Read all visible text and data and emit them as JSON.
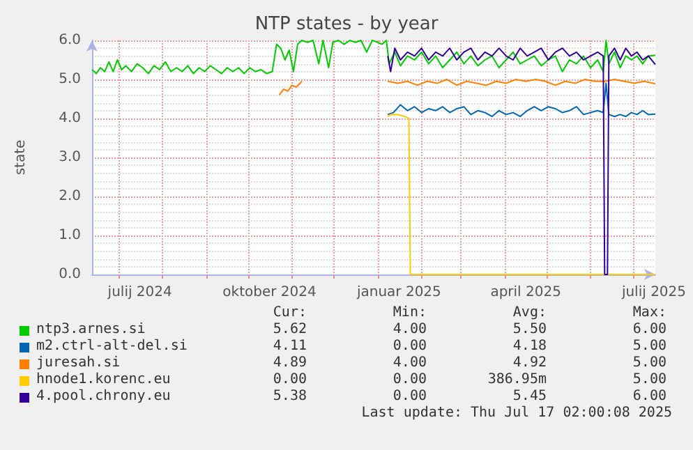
{
  "chart_data": {
    "type": "line",
    "title": "NTP states - by year",
    "ylabel": "state",
    "xlim": [
      "2024-06-12",
      "2025-07-17"
    ],
    "ylim": [
      0,
      6
    ],
    "yticks": [
      {
        "value": 0,
        "label": "0.0"
      },
      {
        "value": 1,
        "label": "1.0"
      },
      {
        "value": 2,
        "label": "2.0"
      },
      {
        "value": 3,
        "label": "3.0"
      },
      {
        "value": 4,
        "label": "4.0"
      },
      {
        "value": 5,
        "label": "5.0"
      },
      {
        "value": 6,
        "label": "6.0"
      }
    ],
    "xticks": [
      {
        "value": "2024-07-01",
        "label": null
      },
      {
        "value": "2024-07-16",
        "label": "julij 2024"
      },
      {
        "value": "2024-08-01",
        "label": null
      },
      {
        "value": "2024-09-01",
        "label": null
      },
      {
        "value": "2024-10-01",
        "label": null
      },
      {
        "value": "2024-10-16",
        "label": "oktober 2024"
      },
      {
        "value": "2024-11-01",
        "label": null
      },
      {
        "value": "2024-12-01",
        "label": null
      },
      {
        "value": "2025-01-01",
        "label": null
      },
      {
        "value": "2025-01-16",
        "label": "januar 2025"
      },
      {
        "value": "2025-02-01",
        "label": null
      },
      {
        "value": "2025-03-01",
        "label": null
      },
      {
        "value": "2025-04-01",
        "label": null
      },
      {
        "value": "2025-04-16",
        "label": "april 2025"
      },
      {
        "value": "2025-05-01",
        "label": null
      },
      {
        "value": "2025-06-01",
        "label": null
      },
      {
        "value": "2025-07-01",
        "label": null
      },
      {
        "value": "2025-07-16",
        "label": "julij 2025"
      }
    ],
    "grid": true,
    "legend": "bottom",
    "marker": "none",
    "series": [
      {
        "name": "ntp3.arnes.si",
        "color": "#00cc00",
        "x": [
          "2024-06-12",
          "2024-06-15",
          "2024-06-18",
          "2024-06-21",
          "2024-06-24",
          "2024-06-27",
          "2024-06-30",
          "2024-07-03",
          "2024-07-06",
          "2024-07-10",
          "2024-07-14",
          "2024-07-18",
          "2024-07-22",
          "2024-07-26",
          "2024-07-30",
          "2024-08-03",
          "2024-08-07",
          "2024-08-11",
          "2024-08-15",
          "2024-08-19",
          "2024-08-23",
          "2024-08-27",
          "2024-08-31",
          "2024-09-04",
          "2024-09-08",
          "2024-09-12",
          "2024-09-16",
          "2024-09-20",
          "2024-09-24",
          "2024-09-28",
          "2024-10-02",
          "2024-10-06",
          "2024-10-10",
          "2024-10-14",
          "2024-10-18",
          "2024-10-21",
          "2024-10-24",
          "2024-10-27",
          "2024-10-30",
          "2024-11-02",
          "2024-11-05",
          "2024-11-08",
          "2024-11-12",
          "2024-11-16",
          "2024-11-20",
          "2024-11-23",
          "2024-11-27",
          "2024-11-30",
          "2024-12-04",
          "2024-12-08",
          "2024-12-12",
          "2024-12-16",
          "2024-12-20",
          "2024-12-24",
          "2024-12-28",
          "2025-01-01",
          "2025-01-04",
          "2025-01-07",
          "2025-01-09",
          "2025-01-13",
          "2025-01-17",
          "2025-01-22",
          "2025-01-27",
          "2025-02-01",
          "2025-02-06",
          "2025-02-11",
          "2025-02-16",
          "2025-02-21",
          "2025-02-26",
          "2025-03-03",
          "2025-03-08",
          "2025-03-13",
          "2025-03-18",
          "2025-03-23",
          "2025-03-28",
          "2025-04-02",
          "2025-04-07",
          "2025-04-12",
          "2025-04-17",
          "2025-04-22",
          "2025-04-27",
          "2025-05-02",
          "2025-05-07",
          "2025-05-12",
          "2025-05-17",
          "2025-05-22",
          "2025-05-27",
          "2025-06-01",
          "2025-06-06",
          "2025-06-10",
          "2025-06-12",
          "2025-06-14",
          "2025-06-18",
          "2025-06-22",
          "2025-06-26",
          "2025-06-30",
          "2025-07-04",
          "2025-07-08",
          "2025-07-12",
          "2025-07-17"
        ],
        "values": [
          5.25,
          5.15,
          5.3,
          5.2,
          5.45,
          5.2,
          5.5,
          5.25,
          5.35,
          5.2,
          5.4,
          5.3,
          5.15,
          5.35,
          5.25,
          5.45,
          5.2,
          5.3,
          5.2,
          5.35,
          5.15,
          5.3,
          5.2,
          5.35,
          5.25,
          5.15,
          5.3,
          5.2,
          5.3,
          5.15,
          5.3,
          5.2,
          5.25,
          5.15,
          5.2,
          5.9,
          5.8,
          5.5,
          5.75,
          5.2,
          5.9,
          6.0,
          5.95,
          6.0,
          5.4,
          6.0,
          5.3,
          5.95,
          6.0,
          5.9,
          6.0,
          5.95,
          6.0,
          5.7,
          6.0,
          5.95,
          5.9,
          6.0,
          5.4,
          5.7,
          5.35,
          5.6,
          5.5,
          5.7,
          5.4,
          5.6,
          5.3,
          5.5,
          5.7,
          5.4,
          5.6,
          5.35,
          5.5,
          5.6,
          5.3,
          5.5,
          5.7,
          5.4,
          5.5,
          5.6,
          5.35,
          5.5,
          5.6,
          5.2,
          5.5,
          5.4,
          5.6,
          5.3,
          5.5,
          5.2,
          6.0,
          5.4,
          5.7,
          5.3,
          5.6,
          5.5,
          5.6,
          5.4,
          5.6,
          5.62
        ]
      },
      {
        "name": "m2.ctrl-alt-del.si",
        "color": "#0066b3",
        "x": [
          "2025-01-08",
          "2025-01-12",
          "2025-01-17",
          "2025-01-22",
          "2025-01-27",
          "2025-02-01",
          "2025-02-06",
          "2025-02-11",
          "2025-02-16",
          "2025-02-21",
          "2025-02-26",
          "2025-03-03",
          "2025-03-08",
          "2025-03-13",
          "2025-03-18",
          "2025-03-23",
          "2025-03-28",
          "2025-04-02",
          "2025-04-07",
          "2025-04-12",
          "2025-04-17",
          "2025-04-22",
          "2025-04-27",
          "2025-05-02",
          "2025-05-07",
          "2025-05-12",
          "2025-05-17",
          "2025-05-22",
          "2025-05-27",
          "2025-06-01",
          "2025-06-06",
          "2025-06-10",
          "2025-06-12",
          "2025-06-14",
          "2025-06-18",
          "2025-06-22",
          "2025-06-26",
          "2025-06-30",
          "2025-07-04",
          "2025-07-08",
          "2025-07-12",
          "2025-07-17"
        ],
        "values": [
          4.1,
          4.15,
          4.35,
          4.2,
          4.3,
          4.15,
          4.25,
          4.2,
          4.3,
          4.15,
          4.25,
          4.3,
          4.1,
          4.2,
          4.15,
          4.05,
          4.2,
          4.1,
          4.15,
          4.05,
          4.2,
          4.3,
          4.2,
          4.3,
          4.25,
          4.15,
          4.2,
          4.3,
          4.1,
          4.15,
          4.2,
          4.15,
          4.9,
          4.1,
          4.05,
          4.1,
          4.05,
          4.15,
          4.1,
          4.2,
          4.1,
          4.11
        ]
      },
      {
        "name": "juresah.si",
        "color": "#ff8000",
        "x": [
          "2025-01-08",
          "2025-01-15",
          "2025-01-22",
          "2025-01-29",
          "2025-02-05",
          "2025-02-12",
          "2025-02-19",
          "2025-02-26",
          "2025-03-05",
          "2025-03-12",
          "2025-03-19",
          "2025-03-26",
          "2025-04-02",
          "2025-04-09",
          "2025-04-16",
          "2025-04-23",
          "2025-04-30",
          "2025-05-07",
          "2025-05-14",
          "2025-05-21",
          "2025-05-28",
          "2025-06-04",
          "2025-06-11",
          "2025-06-18",
          "2025-06-25",
          "2025-07-02",
          "2025-07-09",
          "2025-07-17"
        ],
        "values": [
          4.95,
          4.9,
          4.95,
          4.85,
          4.95,
          4.9,
          5.0,
          4.85,
          4.95,
          4.9,
          4.85,
          4.95,
          4.9,
          5.0,
          4.95,
          5.0,
          4.95,
          4.85,
          4.95,
          4.9,
          5.0,
          4.95,
          4.95,
          5.0,
          4.95,
          4.9,
          4.95,
          4.89
        ]
      },
      {
        "name": "hnode1.korenc.eu",
        "color": "#ffcc00",
        "x": [
          "2025-01-08",
          "2025-01-10",
          "2025-01-15",
          "2025-01-20",
          "2025-01-23",
          "2025-01-24",
          "2025-07-17"
        ],
        "values": [
          4.05,
          4.1,
          4.1,
          4.05,
          4.0,
          0,
          0
        ]
      },
      {
        "name": "4.pool.chrony.eu",
        "color": "#330099",
        "x": [
          "2025-01-08",
          "2025-01-10",
          "2025-01-13",
          "2025-01-17",
          "2025-01-22",
          "2025-01-27",
          "2025-02-01",
          "2025-02-06",
          "2025-02-11",
          "2025-02-16",
          "2025-02-21",
          "2025-02-26",
          "2025-03-03",
          "2025-03-08",
          "2025-03-13",
          "2025-03-18",
          "2025-03-23",
          "2025-03-28",
          "2025-04-02",
          "2025-04-07",
          "2025-04-12",
          "2025-04-17",
          "2025-04-22",
          "2025-04-27",
          "2025-05-02",
          "2025-05-07",
          "2025-05-12",
          "2025-05-17",
          "2025-05-22",
          "2025-05-27",
          "2025-06-01",
          "2025-06-06",
          "2025-06-10",
          "2025-06-11",
          "2025-06-13",
          "2025-06-14",
          "2025-06-18",
          "2025-06-22",
          "2025-06-26",
          "2025-06-30",
          "2025-07-04",
          "2025-07-08",
          "2025-07-12",
          "2025-07-17"
        ],
        "values": [
          5.6,
          5.2,
          5.8,
          5.5,
          5.7,
          5.6,
          5.8,
          5.5,
          5.7,
          5.6,
          5.8,
          5.5,
          5.7,
          5.8,
          5.5,
          5.7,
          5.6,
          5.8,
          5.6,
          5.5,
          5.8,
          5.6,
          5.7,
          5.8,
          5.5,
          5.7,
          5.8,
          5.6,
          5.7,
          5.5,
          5.6,
          5.7,
          5.6,
          0,
          0,
          5.6,
          5.8,
          5.5,
          5.8,
          5.6,
          5.7,
          5.5,
          5.6,
          5.38
        ]
      },
      {
        "color": "#ff8000",
        "x": [
          "2024-10-23",
          "2024-10-26",
          "2024-10-29",
          "2024-11-01",
          "2024-11-04",
          "2024-11-08"
        ],
        "values": [
          4.6,
          4.75,
          4.7,
          4.85,
          4.8,
          4.95
        ]
      }
    ],
    "annotations": [
      "Cur:",
      "Min:",
      "Avg:",
      "Max:",
      "5.62",
      "4.00",
      "5.50",
      "6.00",
      "4.11",
      "0.00",
      "4.18",
      "5.00",
      "4.89",
      "4.00",
      "4.92",
      "5.00",
      "0.00",
      "0.00",
      "386.95m",
      "5.00",
      "5.38",
      "0.00",
      "5.45",
      "6.00",
      "Last update: Thu Jul 17 02:00:08 2025"
    ]
  }
}
